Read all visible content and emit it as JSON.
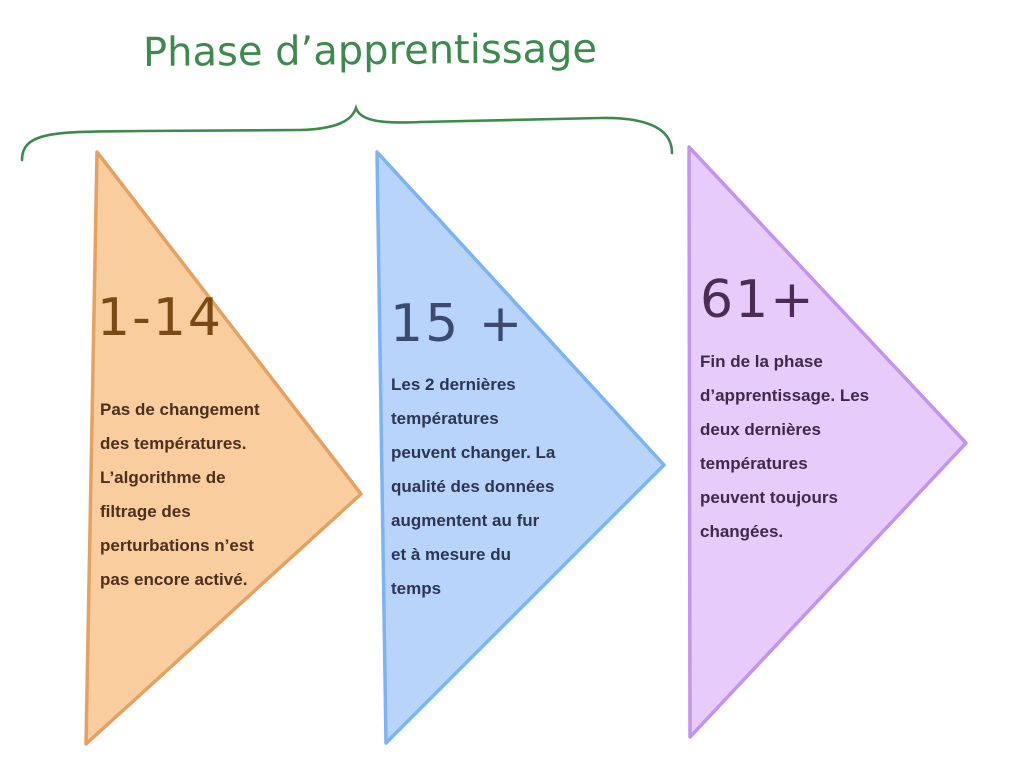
{
  "title": "Phase d’apprentissage",
  "colors": {
    "title": "#3d8a4e",
    "brace": "#3d8a4e",
    "orange_fill": "#f9cd9d",
    "orange_stroke": "#e3a262",
    "blue_fill": "#b8d4fb",
    "blue_stroke": "#7cb3f4",
    "purple_fill": "#e7cbfb",
    "purple_stroke": "#c294f0"
  },
  "phases": [
    {
      "number": "1-14",
      "description": "Pas de changement\ndes températures.\nL’algorithme de\nfiltrage des\nperturbations n’est\npas encore activé."
    },
    {
      "number": "15 +",
      "description": "Les 2 dernières\ntempératures\npeuvent changer. La\nqualité des données\naugmentent au fur\net à mesure du\ntemps"
    },
    {
      "number": "61+",
      "description": "Fin de la phase\nd’apprentissage. Les\ndeux dernières\ntempératures\npeuvent toujours\nchangées."
    }
  ]
}
